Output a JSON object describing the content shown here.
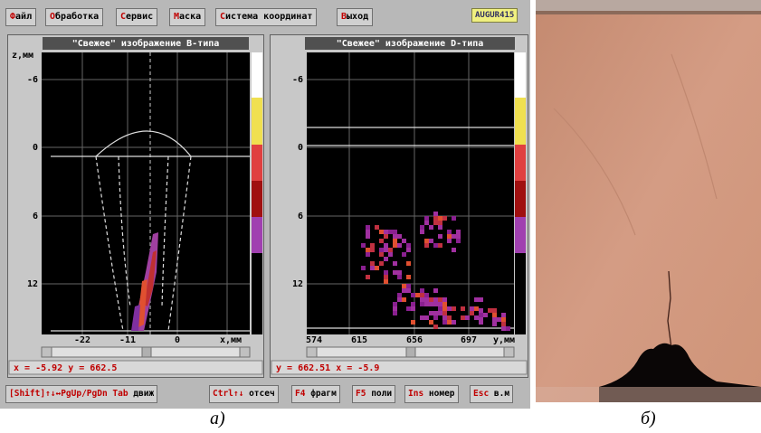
{
  "menu": [
    "Файл",
    "Обработка",
    "Сервис",
    "Маска",
    "Система координат",
    "Выход"
  ],
  "badge": "AUGUR415",
  "panels": [
    {
      "title": "\"Свежее\" изображение B-типа",
      "axis_label": "z,мм",
      "yticks": [
        "-6",
        "0",
        "6",
        "12"
      ],
      "xticks": [
        "-22",
        "-11",
        "0",
        "x,мм"
      ],
      "status": "x = -5.92  y = 662.5"
    },
    {
      "title": "\"Свежее\" изображение D-типа",
      "yticks": [
        "-6",
        "0",
        "6",
        "12"
      ],
      "xticks": [
        "574",
        "615",
        "656",
        "697",
        "y,мм"
      ],
      "status": "y = 662.51  x = -5.9"
    }
  ],
  "bottom_bar": [
    {
      "key": "[Shift]↑↓↔PgUp/PgDn Tab",
      "action": "движ"
    },
    {
      "key": "Ctrl↑↓",
      "action": "отсеч"
    },
    {
      "key": "F4",
      "action": "фрагм"
    },
    {
      "key": "F5",
      "action": "поли"
    },
    {
      "key": "Ins",
      "action": "номер"
    },
    {
      "key": "Esc",
      "action": "в.м"
    }
  ],
  "captions": [
    "а)",
    "б)"
  ]
}
